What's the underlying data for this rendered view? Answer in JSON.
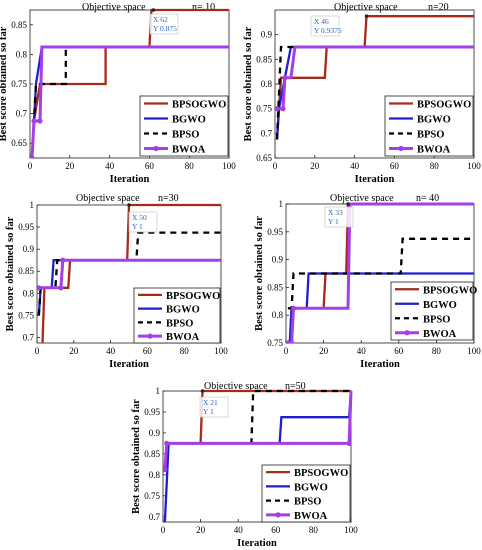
{
  "figure": {
    "ylabel": "Best score obtained so far",
    "xlabel": "Iteration",
    "title_prefix": "Objective space",
    "legend_labels": [
      "BPSOGWO",
      "BGWO",
      "BPSO",
      "BWOA"
    ]
  },
  "colors": {
    "BPSOGWO": "#a52a1c",
    "BGWO": "#1f1fd0",
    "BPSO": "#000000",
    "BWOA": "#a63ee8",
    "datatip_text": "#2f62c8",
    "axis": "#222222"
  },
  "chart_data": [
    {
      "type": "line",
      "title": "Objective space",
      "subtitle": "n= 10",
      "xlabel": "Iteration",
      "ylabel": "Best score obtained so far",
      "xlim": [
        0,
        100
      ],
      "ylim": [
        0.625,
        0.875
      ],
      "xticks": [
        "0",
        "20",
        "40",
        "60",
        "80",
        "100"
      ],
      "yticks": [
        "0.65",
        "0.7",
        "0.75",
        "0.8",
        "0.85"
      ],
      "legend": [
        "BPSOGWO",
        "BGWO",
        "BPSO",
        "BWOA"
      ],
      "datatip": {
        "x": 62,
        "y": 0.875,
        "x_label": "X 62",
        "y_label": "Y 0.875"
      },
      "series": [
        {
          "name": "BPSOGWO",
          "points": [
            [
              1,
              0.625
            ],
            [
              2,
              0.6875
            ],
            [
              5,
              0.75
            ],
            [
              38,
              0.75
            ],
            [
              38,
              0.8125
            ],
            [
              60,
              0.8125
            ],
            [
              61,
              0.875
            ],
            [
              100,
              0.875
            ]
          ]
        },
        {
          "name": "BGWO",
          "points": [
            [
              1,
              0.625
            ],
            [
              3,
              0.75
            ],
            [
              6,
              0.8125
            ],
            [
              100,
              0.8125
            ]
          ]
        },
        {
          "name": "BPSO",
          "points": [
            [
              1,
              0.625
            ],
            [
              3,
              0.75
            ],
            [
              18,
              0.75
            ],
            [
              18,
              0.8125
            ],
            [
              100,
              0.8125
            ]
          ]
        },
        {
          "name": "BWOA",
          "points": [
            [
              1,
              0.625
            ],
            [
              2,
              0.6875
            ],
            [
              5,
              0.6875
            ],
            [
              6,
              0.8125
            ],
            [
              100,
              0.8125
            ]
          ]
        }
      ]
    },
    {
      "type": "line",
      "title": "Objective space",
      "subtitle": "n=20",
      "xlabel": "Iteration",
      "ylabel": "Best score obtained so far",
      "xlim": [
        0,
        100
      ],
      "ylim": [
        0.65,
        0.95
      ],
      "xticks": [
        "0",
        "20",
        "40",
        "60",
        "80",
        "100"
      ],
      "yticks": [
        "0.65",
        "0.7",
        "0.75",
        "0.8",
        "0.85",
        "0.9"
      ],
      "legend": [
        "BPSOGWO",
        "BGWO",
        "BPSO",
        "BWOA"
      ],
      "datatip": {
        "x": 46,
        "y": 0.9375,
        "x_label": "X 46",
        "y_label": "Y 0.9375"
      },
      "series": [
        {
          "name": "BPSOGWO",
          "points": [
            [
              1,
              0.6875
            ],
            [
              3,
              0.8125
            ],
            [
              9,
              0.8125
            ],
            [
              10,
              0.8125
            ],
            [
              25,
              0.8125
            ],
            [
              26,
              0.875
            ],
            [
              45,
              0.875
            ],
            [
              46,
              0.9375
            ],
            [
              100,
              0.9375
            ]
          ]
        },
        {
          "name": "BGWO",
          "points": [
            [
              1,
              0.6875
            ],
            [
              2,
              0.75
            ],
            [
              5,
              0.8125
            ],
            [
              8,
              0.875
            ],
            [
              100,
              0.875
            ]
          ]
        },
        {
          "name": "BPSO",
          "points": [
            [
              1,
              0.6875
            ],
            [
              3,
              0.875
            ],
            [
              8,
              0.875
            ],
            [
              100,
              0.875
            ]
          ]
        },
        {
          "name": "BWOA",
          "points": [
            [
              1,
              0.75
            ],
            [
              4,
              0.75
            ],
            [
              5,
              0.8125
            ],
            [
              8,
              0.8125
            ],
            [
              10,
              0.875
            ],
            [
              100,
              0.875
            ]
          ]
        }
      ]
    },
    {
      "type": "line",
      "title": "Objective space",
      "subtitle": "n=30",
      "xlabel": "Iteration",
      "ylabel": "Best score obtained so far",
      "xlim": [
        0,
        100
      ],
      "ylim": [
        0.6875,
        1.0
      ],
      "xticks": [
        "0",
        "20",
        "40",
        "60",
        "80",
        "100"
      ],
      "yticks": [
        "0.7",
        "0.75",
        "0.8",
        "0.85",
        "0.9",
        "0.95",
        "1"
      ],
      "legend": [
        "BPSOGWO",
        "BGWO",
        "BPSO",
        "BWOA"
      ],
      "datatip": {
        "x": 50,
        "y": 1,
        "x_label": "X 50",
        "y_label": "Y 1"
      },
      "series": [
        {
          "name": "BPSOGWO",
          "points": [
            [
              3,
              0.6875
            ],
            [
              4,
              0.8125
            ],
            [
              17,
              0.8125
            ],
            [
              18,
              0.875
            ],
            [
              49,
              0.875
            ],
            [
              50,
              1.0
            ],
            [
              100,
              1.0
            ]
          ]
        },
        {
          "name": "BGWO",
          "points": [
            [
              1,
              0.75
            ],
            [
              2,
              0.8125
            ],
            [
              8,
              0.8125
            ],
            [
              9,
              0.875
            ],
            [
              100,
              0.875
            ]
          ]
        },
        {
          "name": "BPSO",
          "points": [
            [
              1,
              0.75
            ],
            [
              2,
              0.8125
            ],
            [
              10,
              0.8125
            ],
            [
              11,
              0.875
            ],
            [
              54,
              0.875
            ],
            [
              55,
              0.9375
            ],
            [
              100,
              0.9375
            ]
          ]
        },
        {
          "name": "BWOA",
          "points": [
            [
              1,
              0.8125
            ],
            [
              13,
              0.8125
            ],
            [
              14,
              0.875
            ],
            [
              100,
              0.875
            ]
          ]
        }
      ]
    },
    {
      "type": "line",
      "title": "Objective space",
      "subtitle": "n= 40",
      "xlabel": "Iteration",
      "ylabel": "Best score obtained so far",
      "xlim": [
        0,
        100
      ],
      "ylim": [
        0.75,
        1.0
      ],
      "xticks": [
        "0",
        "20",
        "40",
        "60",
        "80",
        "100"
      ],
      "yticks": [
        "0.75",
        "0.8",
        "0.85",
        "0.9",
        "0.95",
        "1"
      ],
      "legend": [
        "BPSOGWO",
        "BGWO",
        "BPSO",
        "BWOA"
      ],
      "datatip": {
        "x": 33,
        "y": 1,
        "x_label": "X 33",
        "y_label": "Y 1"
      },
      "series": [
        {
          "name": "BPSOGWO",
          "points": [
            [
              2,
              0.75
            ],
            [
              3,
              0.8125
            ],
            [
              20,
              0.8125
            ],
            [
              21,
              0.875
            ],
            [
              32,
              0.875
            ],
            [
              33,
              1.0
            ],
            [
              100,
              1.0
            ]
          ]
        },
        {
          "name": "BGWO",
          "points": [
            [
              2,
              0.75
            ],
            [
              3,
              0.8125
            ],
            [
              11,
              0.8125
            ],
            [
              12,
              0.875
            ],
            [
              100,
              0.875
            ]
          ]
        },
        {
          "name": "BPSO",
          "points": [
            [
              1,
              0.8125
            ],
            [
              3,
              0.8125
            ],
            [
              4,
              0.875
            ],
            [
              61,
              0.875
            ],
            [
              62,
              0.9375
            ],
            [
              100,
              0.9375
            ]
          ]
        },
        {
          "name": "BWOA",
          "points": [
            [
              1,
              0.75
            ],
            [
              3,
              0.75
            ],
            [
              4,
              0.8125
            ],
            [
              33,
              0.8125
            ],
            [
              34,
              1.0
            ],
            [
              100,
              1.0
            ]
          ]
        }
      ]
    },
    {
      "type": "line",
      "title": "Objective space",
      "subtitle": "n=50",
      "xlabel": "Iteration",
      "ylabel": "Best score obtained so far",
      "xlim": [
        0,
        100
      ],
      "ylim": [
        0.6875,
        1.0
      ],
      "xticks": [
        "0",
        "20",
        "40",
        "60",
        "80",
        "100"
      ],
      "yticks": [
        "0.7",
        "0.75",
        "0.8",
        "0.85",
        "0.9",
        "0.95",
        "1"
      ],
      "legend": [
        "BPSOGWO",
        "BGWO",
        "BPSO",
        "BWOA"
      ],
      "datatip": {
        "x": 21,
        "y": 1,
        "x_label": "X 21",
        "y_label": "Y 1"
      },
      "series": [
        {
          "name": "BPSOGWO",
          "points": [
            [
              1,
              0.8125
            ],
            [
              2,
              0.875
            ],
            [
              20,
              0.875
            ],
            [
              21,
              1.0
            ],
            [
              100,
              1.0
            ]
          ]
        },
        {
          "name": "BGWO",
          "points": [
            [
              1,
              0.6875
            ],
            [
              3,
              0.875
            ],
            [
              62,
              0.875
            ],
            [
              63,
              0.9375
            ],
            [
              99,
              0.9375
            ],
            [
              100,
              1.0
            ]
          ]
        },
        {
          "name": "BPSO",
          "points": [
            [
              1,
              0.8125
            ],
            [
              2,
              0.875
            ],
            [
              47,
              0.875
            ],
            [
              48,
              1.0
            ],
            [
              100,
              1.0
            ]
          ]
        },
        {
          "name": "BWOA",
          "points": [
            [
              1,
              0.8125
            ],
            [
              2,
              0.875
            ],
            [
              99,
              0.875
            ],
            [
              100,
              1.0
            ]
          ]
        }
      ]
    }
  ]
}
